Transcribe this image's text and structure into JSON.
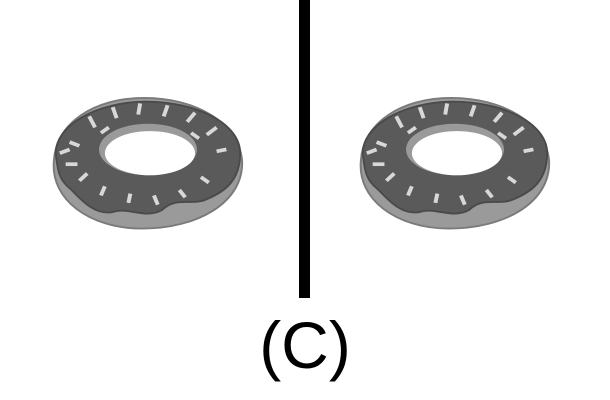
{
  "panel_label": "(C)",
  "items": [
    {
      "name": "donut",
      "icon": "sprinkled-donut-icon"
    },
    {
      "name": "donut",
      "icon": "sprinkled-donut-icon"
    }
  ],
  "colors": {
    "background": "#ffffff",
    "divider": "#000000",
    "icing": "#5a5a5a",
    "dough": "#9a9a9a",
    "sprinkle": "#d8d8d8"
  }
}
